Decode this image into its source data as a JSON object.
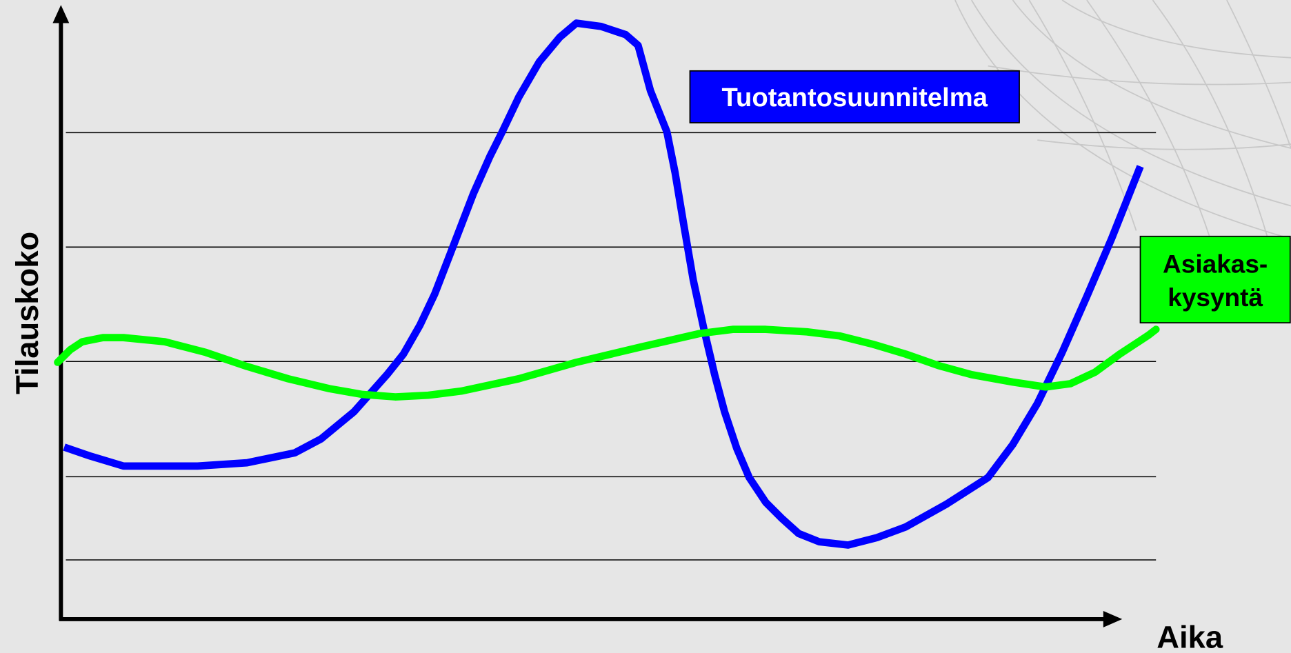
{
  "y_axis_label": "Tilauskoko",
  "x_axis_label": "Aika",
  "curve_labels": {
    "production_plan": "Tuotantosuunnitelma",
    "customer_demand": [
      "Asiakas-",
      "kysyntä"
    ]
  }
}
